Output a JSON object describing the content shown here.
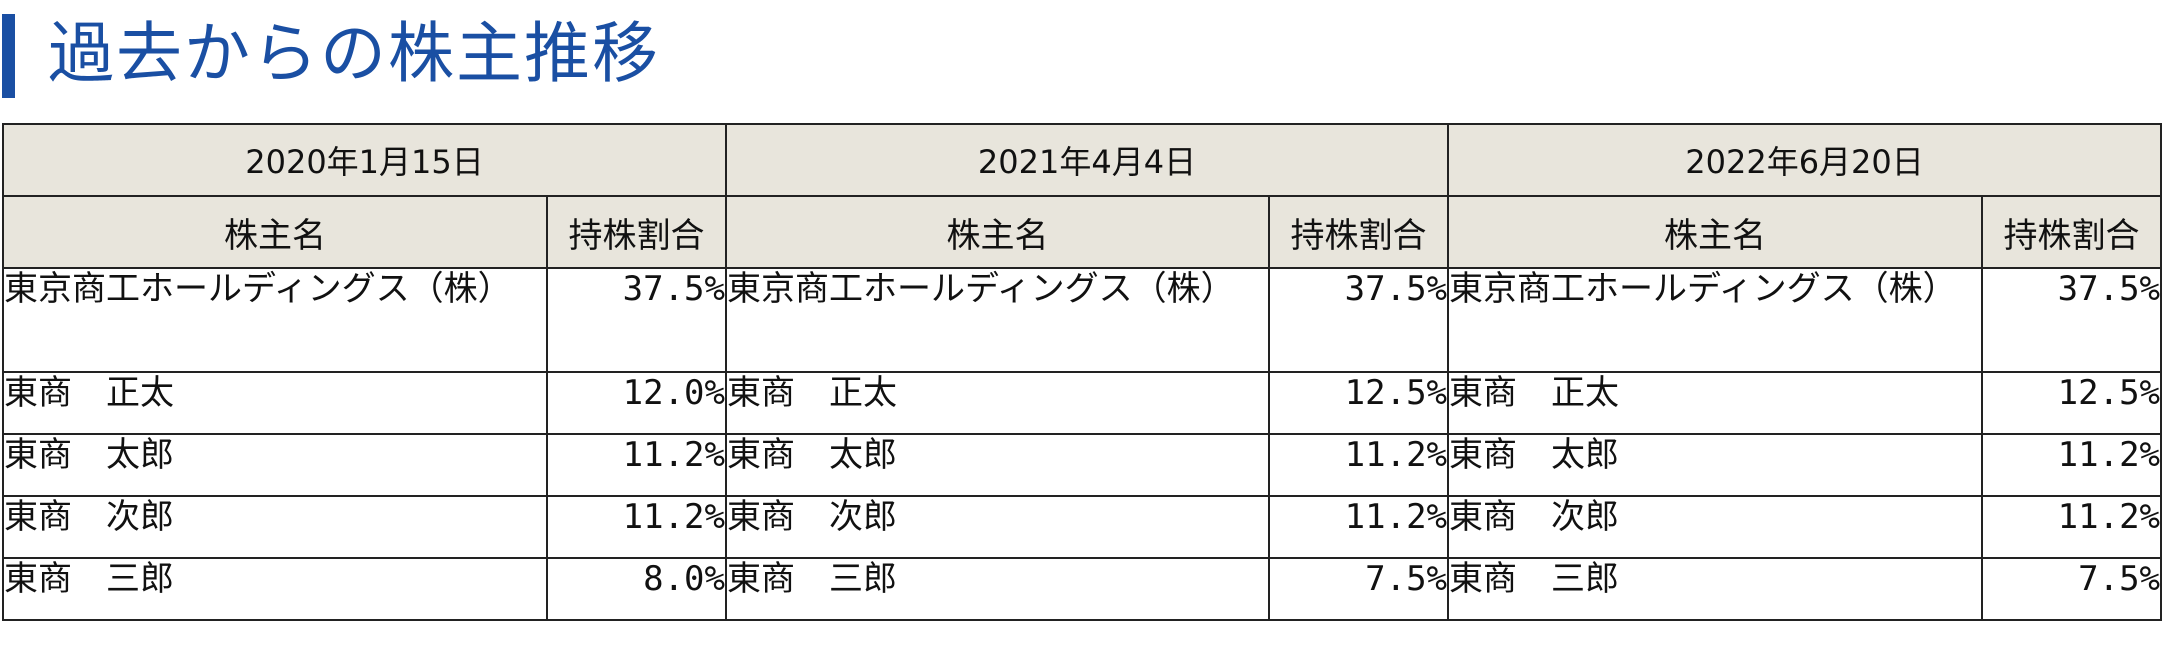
{
  "title": "過去からの株主推移",
  "periods": [
    {
      "date": "2020年1月15日",
      "col_name": "株主名",
      "col_pct": "持株割合",
      "rows": [
        {
          "name": "東京商工ホールディングス（株）",
          "pct": "37.5%"
        },
        {
          "name": "東商　正太",
          "pct": "12.0%"
        },
        {
          "name": "東商　太郎",
          "pct": "11.2%"
        },
        {
          "name": "東商　次郎",
          "pct": "11.2%"
        },
        {
          "name": "東商　三郎",
          "pct": "8.0%"
        }
      ]
    },
    {
      "date": "2021年4月4日",
      "col_name": "株主名",
      "col_pct": "持株割合",
      "rows": [
        {
          "name": "東京商工ホールディングス（株）",
          "pct": "37.5%"
        },
        {
          "name": "東商　正太",
          "pct": "12.5%"
        },
        {
          "name": "東商　太郎",
          "pct": "11.2%"
        },
        {
          "name": "東商　次郎",
          "pct": "11.2%"
        },
        {
          "name": "東商　三郎",
          "pct": "7.5%"
        }
      ]
    },
    {
      "date": "2022年6月20日",
      "col_name": "株主名",
      "col_pct": "持株割合",
      "rows": [
        {
          "name": "東京商工ホールディングス（株）",
          "pct": "37.5%"
        },
        {
          "name": "東商　正太",
          "pct": "12.5%"
        },
        {
          "name": "東商　太郎",
          "pct": "11.2%"
        },
        {
          "name": "東商　次郎",
          "pct": "11.2%"
        },
        {
          "name": "東商　三郎",
          "pct": "7.5%"
        }
      ]
    }
  ],
  "colors": {
    "accent": "#1a4fa3",
    "header_bg": "#e8e5dc",
    "border": "#222222"
  }
}
